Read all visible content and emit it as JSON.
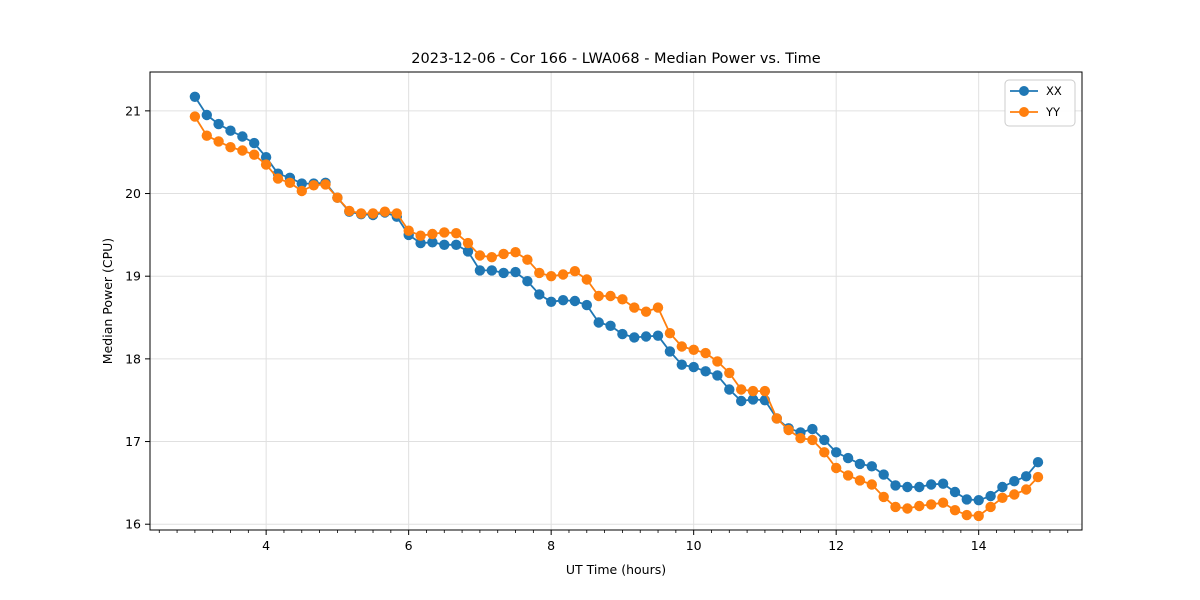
{
  "figure": {
    "background": "#ffffff"
  },
  "chart_data": {
    "type": "line",
    "title": "2023-12-06 - Cor 166 - LWA068 - Median Power vs. Time",
    "xlabel": "UT Time (hours)",
    "ylabel": "Median Power (CPU)",
    "xlim": [
      2.37,
      15.45
    ],
    "ylim": [
      15.93,
      21.47
    ],
    "xticks": [
      4,
      6,
      8,
      10,
      12,
      14
    ],
    "yticks": [
      16,
      17,
      18,
      19,
      20,
      21
    ],
    "x_minor_step": 0.25,
    "grid": true,
    "grid_color": "#e0e0e0",
    "spine_color": "#000000",
    "legend_position": "upper right",
    "marker": "circle",
    "x": [
      3.0,
      3.167,
      3.333,
      3.5,
      3.667,
      3.833,
      4.0,
      4.167,
      4.333,
      4.5,
      4.667,
      4.833,
      5.0,
      5.167,
      5.333,
      5.5,
      5.667,
      5.833,
      6.0,
      6.167,
      6.333,
      6.5,
      6.667,
      6.833,
      7.0,
      7.167,
      7.333,
      7.5,
      7.667,
      7.833,
      8.0,
      8.167,
      8.333,
      8.5,
      8.667,
      8.833,
      9.0,
      9.167,
      9.333,
      9.5,
      9.667,
      9.833,
      10.0,
      10.167,
      10.333,
      10.5,
      10.667,
      10.833,
      11.0,
      11.167,
      11.333,
      11.5,
      11.667,
      11.833,
      12.0,
      12.167,
      12.333,
      12.5,
      12.667,
      12.833,
      13.0,
      13.167,
      13.333,
      13.5,
      13.667,
      13.833,
      14.0,
      14.167,
      14.333,
      14.5,
      14.667,
      14.833
    ],
    "series": [
      {
        "name": "XX",
        "color": "#1f77b4",
        "values": [
          21.17,
          20.95,
          20.84,
          20.76,
          20.69,
          20.61,
          20.44,
          20.24,
          20.19,
          20.12,
          20.12,
          20.13,
          19.95,
          19.78,
          19.75,
          19.74,
          19.77,
          19.72,
          19.5,
          19.4,
          19.41,
          19.38,
          19.38,
          19.3,
          19.07,
          19.07,
          19.04,
          19.05,
          18.94,
          18.78,
          18.69,
          18.71,
          18.7,
          18.65,
          18.44,
          18.4,
          18.3,
          18.26,
          18.27,
          18.28,
          18.09,
          17.93,
          17.9,
          17.85,
          17.8,
          17.63,
          17.49,
          17.51,
          17.5,
          17.28,
          17.16,
          17.11,
          17.15,
          17.02,
          16.87,
          16.8,
          16.73,
          16.7,
          16.6,
          16.47,
          16.45,
          16.45,
          16.48,
          16.49,
          16.39,
          16.3,
          16.29,
          16.34,
          16.45,
          16.52,
          16.58,
          16.75
        ]
      },
      {
        "name": "YY",
        "color": "#ff7f0e",
        "values": [
          20.93,
          20.7,
          20.63,
          20.56,
          20.52,
          20.47,
          20.35,
          20.18,
          20.13,
          20.03,
          20.1,
          20.11,
          19.95,
          19.79,
          19.76,
          19.76,
          19.78,
          19.76,
          19.55,
          19.49,
          19.51,
          19.53,
          19.52,
          19.4,
          19.25,
          19.23,
          19.27,
          19.29,
          19.2,
          19.04,
          19.0,
          19.02,
          19.06,
          18.96,
          18.76,
          18.76,
          18.72,
          18.62,
          18.57,
          18.62,
          18.31,
          18.15,
          18.11,
          18.07,
          17.97,
          17.83,
          17.63,
          17.61,
          17.61,
          17.28,
          17.14,
          17.04,
          17.02,
          16.87,
          16.68,
          16.59,
          16.53,
          16.48,
          16.33,
          16.21,
          16.19,
          16.22,
          16.24,
          16.26,
          16.17,
          16.11,
          16.1,
          16.21,
          16.32,
          16.36,
          16.42,
          16.57
        ]
      }
    ]
  }
}
